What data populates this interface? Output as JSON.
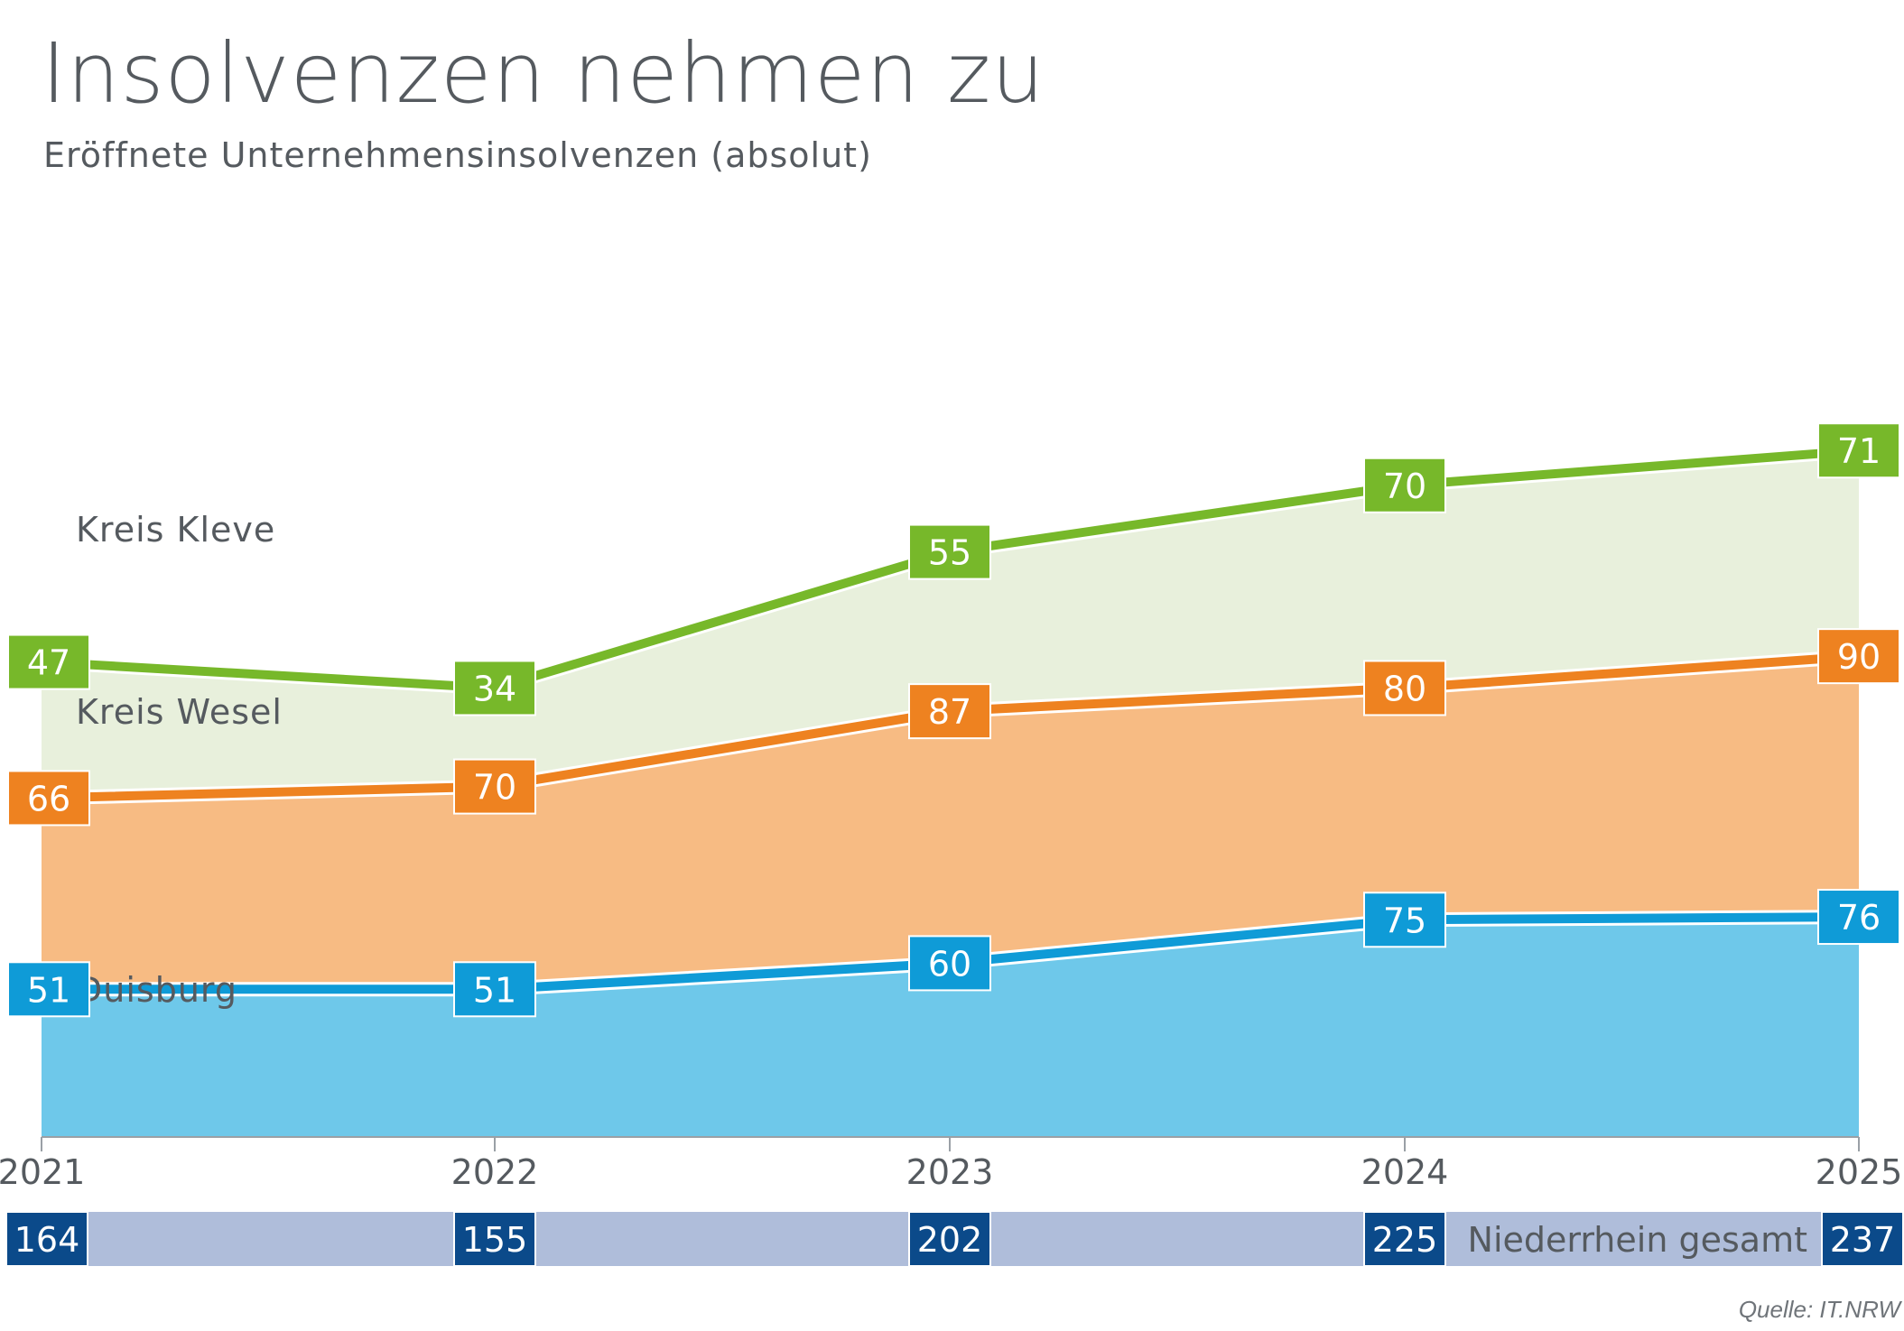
{
  "title": "Insolvenzen nehmen zu",
  "subtitle": "Eröffnete Unternehmensinsolvenzen (absolut)",
  "source": "Quelle: IT.NRW",
  "chart_data": {
    "type": "area",
    "stacked": true,
    "x": [
      "2021",
      "2022",
      "2023",
      "2024",
      "2025"
    ],
    "series": [
      {
        "name": "Duisburg",
        "values": [
          51,
          51,
          60,
          75,
          76
        ],
        "color": "#0f9bd7",
        "fill": "#6ec8ea"
      },
      {
        "name": "Kreis Wesel",
        "values": [
          66,
          70,
          87,
          80,
          90
        ],
        "color": "#ee8220",
        "fill": "#f7bb83"
      },
      {
        "name": "Kreis Kleve",
        "values": [
          47,
          34,
          55,
          70,
          71
        ],
        "color": "#77b82a",
        "fill": "#e8f0dc"
      }
    ],
    "total": {
      "name": "Niederrhein gesamt",
      "values": [
        164,
        155,
        202,
        225,
        237
      ],
      "color": "#0b4a8a",
      "band_color": "#afbdda"
    },
    "grid": false,
    "legend": "inline labels on areas"
  }
}
